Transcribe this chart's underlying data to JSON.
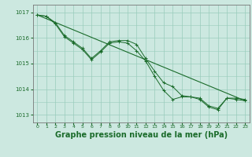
{
  "bg_color": "#cce8e0",
  "grid_color": "#99ccbb",
  "line_color": "#1a6b2a",
  "title": "Graphe pression niveau de la mer (hPa)",
  "title_fontsize": 7.0,
  "xlim": [
    -0.5,
    23.5
  ],
  "ylim": [
    1012.7,
    1017.3
  ],
  "yticks": [
    1013,
    1014,
    1015,
    1016,
    1017
  ],
  "xticks": [
    0,
    1,
    2,
    3,
    4,
    5,
    6,
    7,
    8,
    9,
    10,
    11,
    12,
    13,
    14,
    15,
    16,
    17,
    18,
    19,
    20,
    21,
    22,
    23
  ],
  "hours": [
    0,
    1,
    2,
    3,
    4,
    5,
    6,
    7,
    8,
    9,
    10,
    11,
    12,
    13,
    14,
    15,
    16,
    17,
    18,
    19,
    20,
    21,
    22,
    23
  ],
  "line1": [
    1016.9,
    1016.85,
    1016.6,
    1016.1,
    1015.85,
    1015.6,
    1015.2,
    1015.5,
    1015.85,
    1015.9,
    1015.9,
    1015.75,
    1015.2,
    1014.7,
    1014.25,
    1014.1,
    1013.75,
    1013.7,
    1013.65,
    1013.35,
    1013.25,
    1013.65,
    1013.65,
    1013.6
  ],
  "line2": [
    1016.9,
    1016.85,
    1016.55,
    1016.05,
    1015.8,
    1015.55,
    1015.15,
    1015.45,
    1015.8,
    1015.85,
    1015.8,
    1015.5,
    1015.1,
    1014.5,
    1013.95,
    1013.6,
    1013.7,
    1013.7,
    1013.6,
    1013.3,
    1013.2,
    1013.65,
    1013.6,
    1013.55
  ],
  "trend_x": [
    0,
    23
  ],
  "trend_y": [
    1016.9,
    1013.55
  ]
}
